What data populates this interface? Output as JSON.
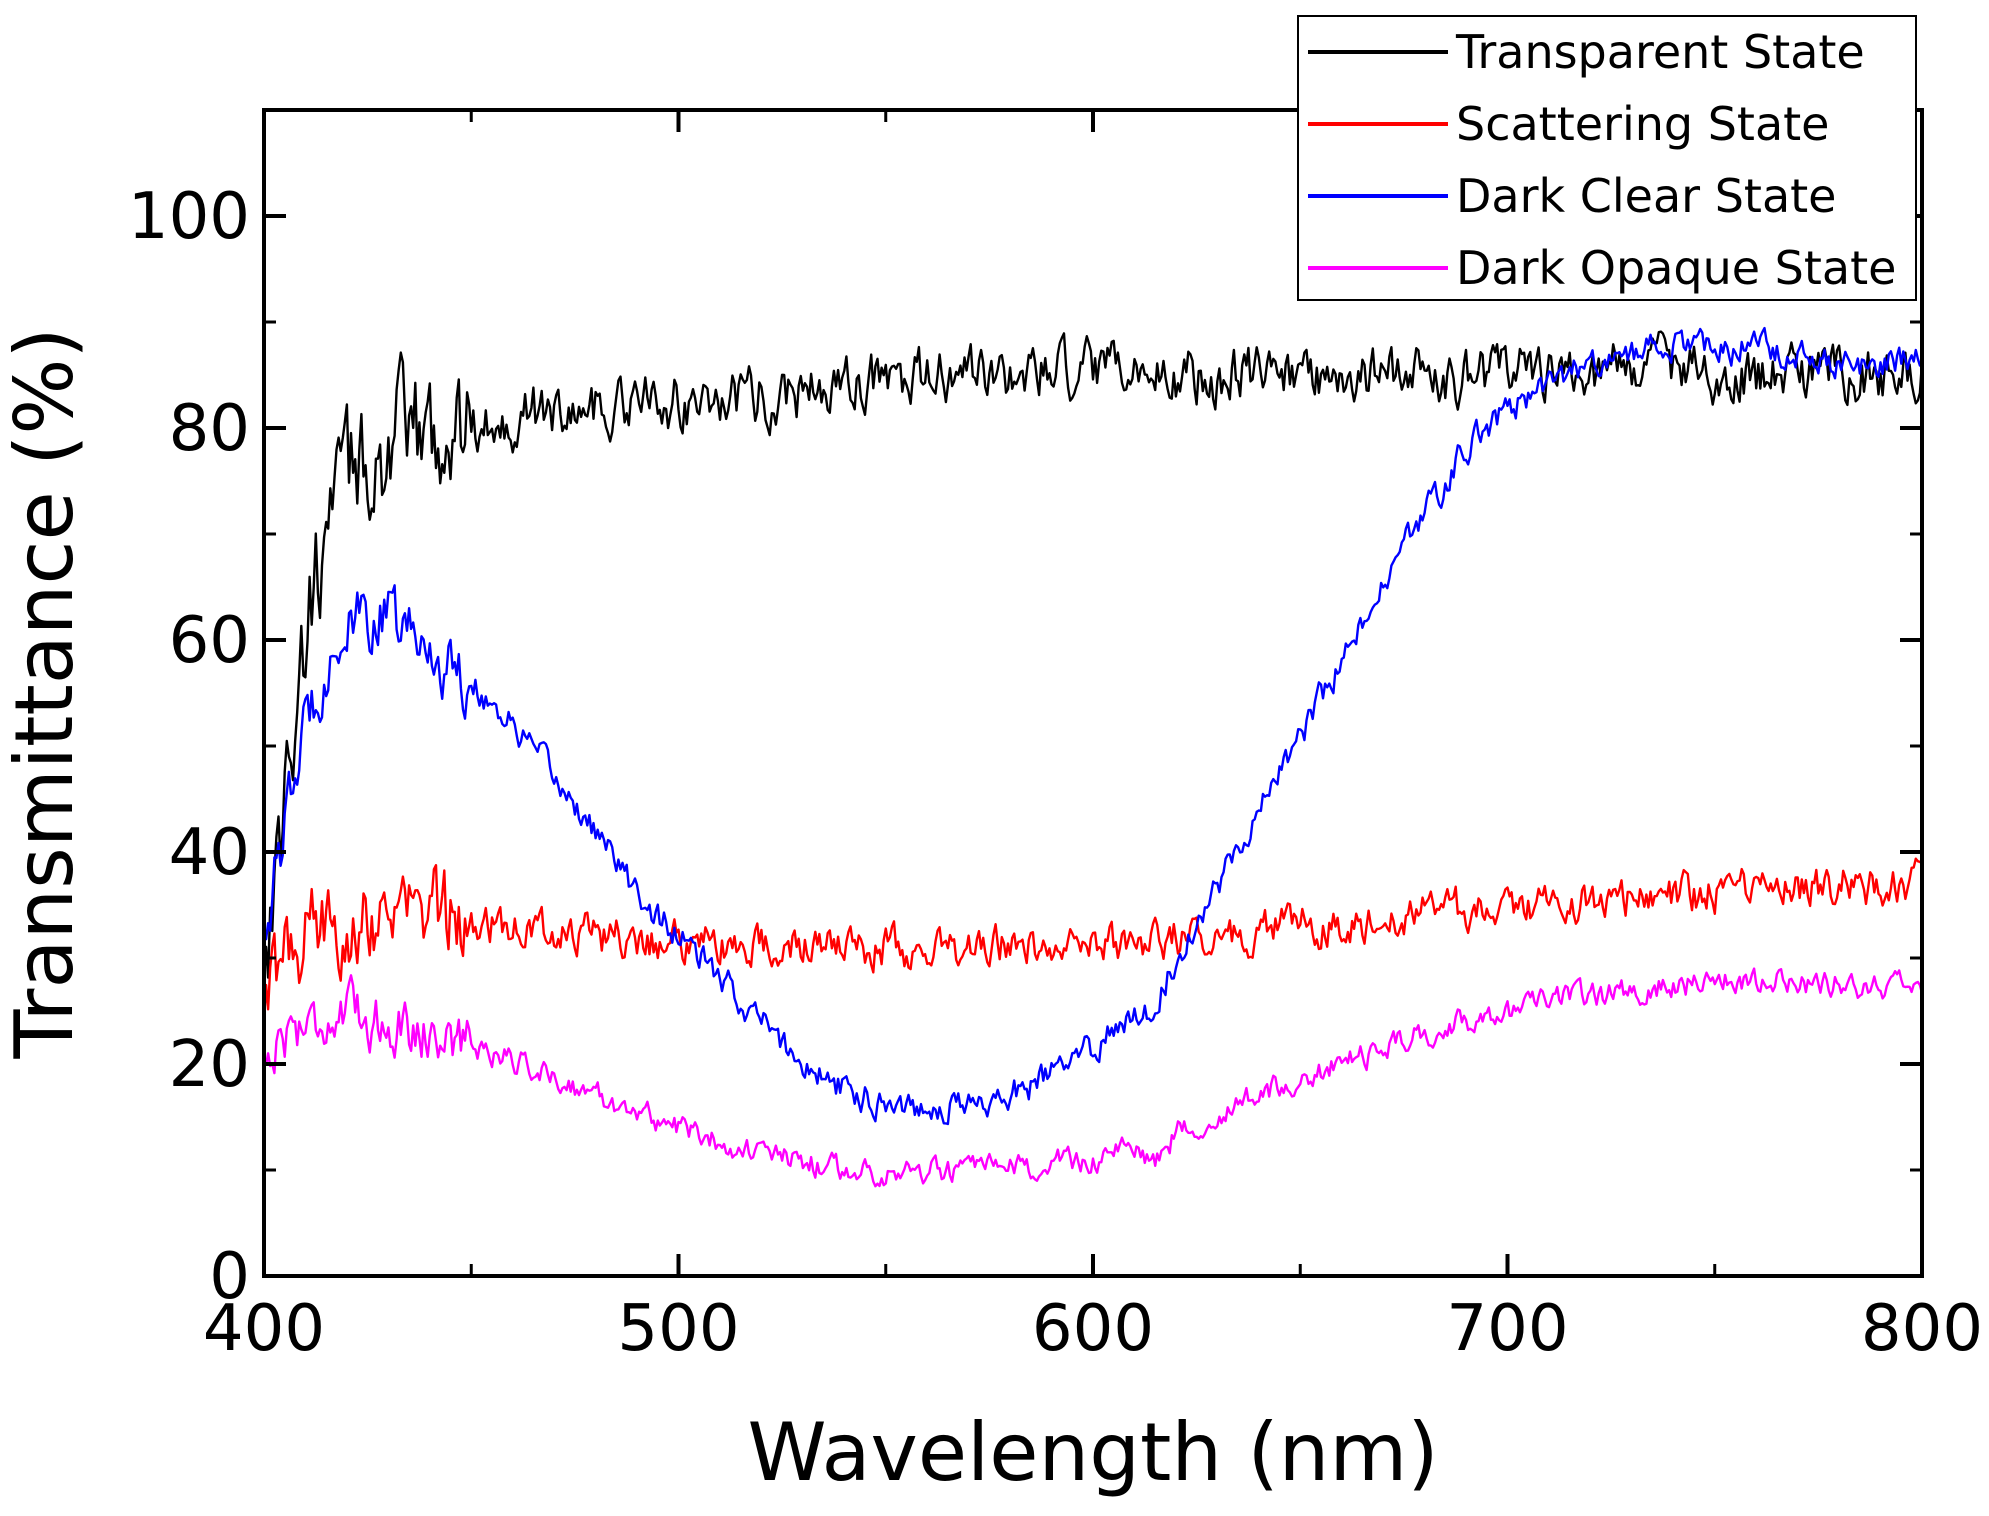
{
  "chart_data": {
    "type": "line",
    "title": "",
    "xlabel": "Wavelength (nm)",
    "ylabel": "Transmittance (%)",
    "xlim": [
      400,
      800
    ],
    "ylim": [
      0,
      110
    ],
    "xticks": [
      400,
      500,
      600,
      700,
      800
    ],
    "yticks": [
      0,
      20,
      40,
      60,
      80,
      100
    ],
    "grid": false,
    "legend_position": "top-right",
    "series": [
      {
        "name": "Transparent State",
        "color": "#000000",
        "noise": 2.2,
        "x": [
          400,
          405,
          410,
          415,
          420,
          425,
          430,
          440,
          450,
          460,
          480,
          500,
          520,
          540,
          560,
          580,
          600,
          620,
          640,
          660,
          680,
          700,
          720,
          740,
          760,
          780,
          800
        ],
        "y": [
          30,
          45,
          60,
          70,
          75,
          77,
          78,
          79,
          80,
          81,
          82,
          82.5,
          83,
          84,
          84.5,
          85,
          85,
          85,
          85,
          85,
          85,
          85,
          85.5,
          86,
          85,
          85,
          85
        ]
      },
      {
        "name": "Scattering State",
        "color": "#ff0000",
        "noise": 1.6,
        "x": [
          400,
          405,
          410,
          420,
          430,
          440,
          460,
          480,
          500,
          520,
          540,
          560,
          580,
          600,
          620,
          640,
          660,
          680,
          700,
          720,
          740,
          760,
          780,
          800
        ],
        "y": [
          25,
          30,
          32,
          34,
          34.5,
          34,
          33,
          32,
          31.5,
          31,
          31,
          30.8,
          31,
          31.5,
          32,
          32.5,
          33.5,
          34,
          35,
          35.5,
          36,
          36.5,
          37,
          37
        ]
      },
      {
        "name": "Dark Clear State",
        "color": "#0000ff",
        "noise": 1.2,
        "x": [
          400,
          405,
          410,
          415,
          420,
          425,
          430,
          440,
          450,
          460,
          470,
          480,
          490,
          500,
          510,
          520,
          530,
          540,
          550,
          560,
          570,
          580,
          590,
          600,
          610,
          615,
          620,
          630,
          640,
          650,
          660,
          670,
          680,
          690,
          700,
          710,
          720,
          730,
          740,
          750,
          760,
          770,
          780,
          790,
          800
        ],
        "y": [
          33,
          42,
          52,
          58,
          61,
          62,
          62,
          59,
          56,
          52,
          47,
          42,
          36,
          32,
          28,
          24,
          20,
          17.5,
          16.5,
          16,
          16.2,
          17,
          19,
          21.5,
          25,
          25.5,
          30,
          37,
          44,
          51,
          58,
          65,
          72,
          78,
          82,
          84,
          86,
          87,
          88,
          87,
          88,
          87,
          86,
          86,
          87
        ]
      },
      {
        "name": "Dark Opaque State",
        "color": "#ff00ff",
        "noise": 1.0,
        "x": [
          400,
          405,
          410,
          420,
          430,
          440,
          460,
          480,
          500,
          520,
          540,
          560,
          580,
          600,
          610,
          615,
          620,
          640,
          660,
          680,
          700,
          720,
          740,
          760,
          780,
          800
        ],
        "y": [
          20,
          23,
          24,
          24.5,
          24,
          23,
          20.5,
          17,
          14,
          11.5,
          10,
          9.8,
          10,
          11,
          12,
          11,
          13.5,
          17,
          20,
          23,
          25,
          26.5,
          27.5,
          28,
          27.5,
          27
        ]
      }
    ]
  }
}
